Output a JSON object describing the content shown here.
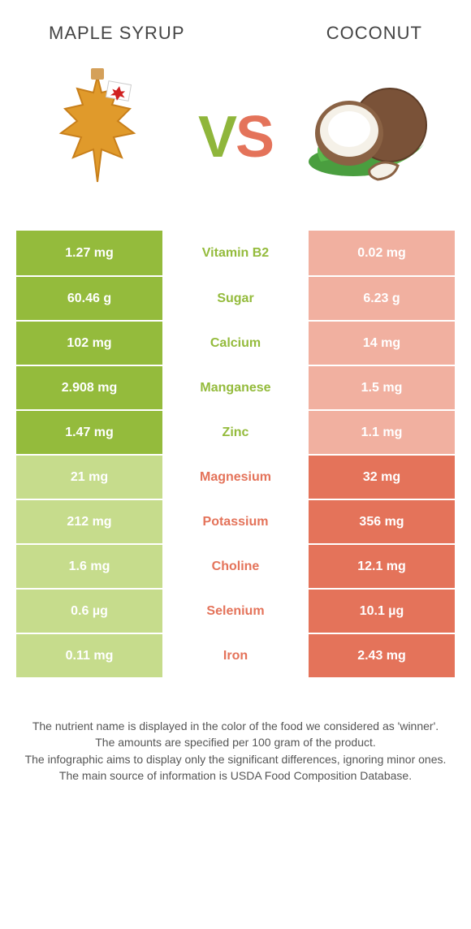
{
  "colors": {
    "left_winner": "#94bb3c",
    "left_loser": "#c6dc8c",
    "right_winner": "#e4735a",
    "right_loser": "#f1b0a0",
    "mid_bg": "#ffffff",
    "left_text": "#94bb3c",
    "right_text": "#e4735a"
  },
  "header": {
    "left": "Maple syrup",
    "right": "Coconut"
  },
  "vs": {
    "v": "V",
    "s": "S"
  },
  "rows": [
    {
      "nutrient": "Vitamin B2",
      "left": "1.27 mg",
      "right": "0.02 mg",
      "winner": "left"
    },
    {
      "nutrient": "Sugar",
      "left": "60.46 g",
      "right": "6.23 g",
      "winner": "left"
    },
    {
      "nutrient": "Calcium",
      "left": "102 mg",
      "right": "14 mg",
      "winner": "left"
    },
    {
      "nutrient": "Manganese",
      "left": "2.908 mg",
      "right": "1.5 mg",
      "winner": "left"
    },
    {
      "nutrient": "Zinc",
      "left": "1.47 mg",
      "right": "1.1 mg",
      "winner": "left"
    },
    {
      "nutrient": "Magnesium",
      "left": "21 mg",
      "right": "32 mg",
      "winner": "right"
    },
    {
      "nutrient": "Potassium",
      "left": "212 mg",
      "right": "356 mg",
      "winner": "right"
    },
    {
      "nutrient": "Choline",
      "left": "1.6 mg",
      "right": "12.1 mg",
      "winner": "right"
    },
    {
      "nutrient": "Selenium",
      "left": "0.6 µg",
      "right": "10.1 µg",
      "winner": "right"
    },
    {
      "nutrient": "Iron",
      "left": "0.11 mg",
      "right": "2.43 mg",
      "winner": "right"
    }
  ],
  "footer": [
    "The nutrient name is displayed in the color of the food we considered as 'winner'.",
    "The amounts are specified per 100 gram of the product.",
    "The infographic aims to display only the significant differences, ignoring minor ones.",
    "The main source of information is USDA Food Composition Database."
  ]
}
